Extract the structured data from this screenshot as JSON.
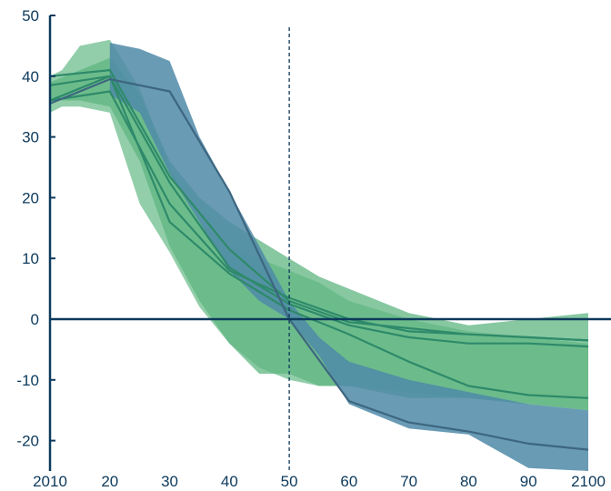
{
  "chart_data": {
    "type": "area",
    "xlim": [
      2010,
      2100
    ],
    "ylim": [
      -25,
      50
    ],
    "x_ticks": [
      2010,
      2020,
      2030,
      2040,
      2050,
      2060,
      2070,
      2080,
      2090,
      2100
    ],
    "x_tick_labels": [
      "2010",
      "20",
      "30",
      "40",
      "50",
      "60",
      "70",
      "80",
      "90",
      "2100"
    ],
    "y_ticks": [
      50,
      40,
      30,
      20,
      10,
      0,
      -10,
      -20
    ],
    "y_tick_labels": [
      "50",
      "40",
      "30",
      "20",
      "10",
      "0",
      "-10",
      "-20"
    ],
    "reference_line_x": 2050,
    "grid": false,
    "colors": {
      "axis": "#0d3a5c",
      "band_light": "#86c9a0",
      "band_green": "#5fb582",
      "band_blue": "#4f8aa8",
      "line_green": "#2e8a6a",
      "line_blue": "#3d6680",
      "reference_line": "#0d3a5c"
    },
    "bands": [
      {
        "style": "light",
        "x": [
          2010,
          2012,
          2015,
          2020,
          2025,
          2030,
          2035,
          2040,
          2045,
          2050,
          2055,
          2060,
          2070,
          2080,
          2090,
          2100
        ],
        "upper": [
          40,
          41,
          45,
          46,
          38,
          25,
          16,
          12,
          10,
          8,
          6,
          3,
          0,
          -2,
          -3,
          -4
        ],
        "lower": [
          34,
          35,
          35,
          34,
          19,
          11,
          2,
          -4,
          -8,
          -10,
          -11,
          -11,
          -12,
          -13,
          -14,
          -15
        ]
      },
      {
        "style": "green",
        "x": [
          2010,
          2015,
          2020,
          2025,
          2030,
          2035,
          2040,
          2045,
          2050,
          2055,
          2060,
          2070,
          2080,
          2090,
          2100
        ],
        "upper": [
          39,
          41,
          43,
          37,
          26,
          20,
          16,
          13,
          10,
          7,
          5,
          1,
          -1,
          0,
          1
        ],
        "lower": [
          36,
          36,
          35,
          26,
          12,
          3,
          -4,
          -9,
          -9,
          -11,
          -11,
          -13,
          -13,
          -14,
          -15
        ]
      },
      {
        "style": "blue",
        "x": [
          2020,
          2025,
          2030,
          2035,
          2040,
          2045,
          2050,
          2055,
          2060,
          2070,
          2080,
          2090,
          2100
        ],
        "upper": [
          45.5,
          44.5,
          42.5,
          30,
          21,
          12,
          3,
          -3,
          -7,
          -10,
          -12,
          -14,
          -15
        ],
        "lower": [
          37,
          34,
          24,
          16,
          8,
          3,
          0,
          -6,
          -14,
          -18,
          -19,
          -24.5,
          -25
        ]
      }
    ],
    "series": [
      {
        "style": "green",
        "x": [
          2010,
          2020,
          2030,
          2040,
          2050,
          2060,
          2070,
          2080,
          2090,
          2100
        ],
        "values": [
          38.5,
          40,
          22.5,
          8.5,
          2.5,
          -1,
          -3,
          -4,
          -4,
          -4.5
        ]
      },
      {
        "style": "green",
        "x": [
          2010,
          2020,
          2030,
          2040,
          2050,
          2060,
          2070,
          2080,
          2090,
          2100
        ],
        "values": [
          36,
          37.5,
          19,
          8,
          3.5,
          0,
          -2,
          -2.5,
          -3,
          -3.5
        ]
      },
      {
        "style": "green",
        "x": [
          2010,
          2020,
          2030,
          2040,
          2050,
          2060,
          2070,
          2080,
          2090,
          2100
        ],
        "values": [
          36,
          40,
          16,
          7.5,
          1.5,
          -2.5,
          -7,
          -11,
          -12.5,
          -13
        ]
      },
      {
        "style": "green",
        "x": [
          2010,
          2020,
          2030,
          2040,
          2050,
          2060,
          2070,
          2080,
          2090,
          2100
        ],
        "values": [
          40,
          41,
          23.5,
          11.5,
          3,
          -0.5,
          -1.5,
          -2.5,
          -3,
          -3.5
        ]
      },
      {
        "style": "blue",
        "x": [
          2010,
          2020,
          2030,
          2040,
          2050,
          2060,
          2070,
          2080,
          2090,
          2100
        ],
        "values": [
          35.5,
          39.5,
          37.5,
          21,
          0,
          -13.5,
          -17,
          -18.5,
          -20.5,
          -21.5
        ]
      }
    ]
  }
}
